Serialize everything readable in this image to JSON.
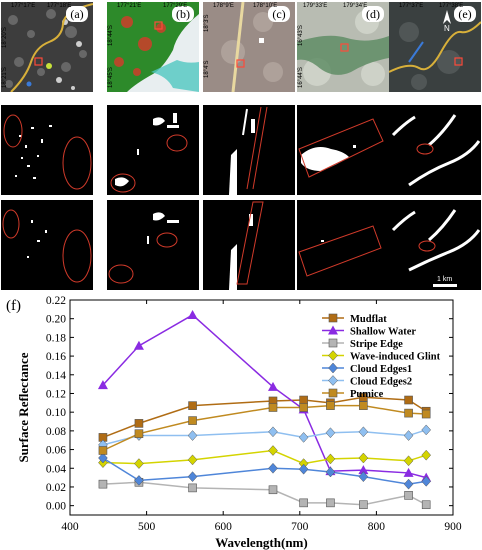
{
  "panels": [
    {
      "label": "(a)",
      "top_coords": [
        "177°17'E",
        "177°18'E"
      ],
      "left_coords": [
        "18°20'S",
        "18°21'S"
      ]
    },
    {
      "label": "(b)",
      "top_coords": [
        "177°21'E"
      ],
      "right_coords": [
        "177°29'E"
      ],
      "left_coords": [
        "18°44'S",
        "18°45'S"
      ]
    },
    {
      "label": "(c)",
      "top_coords": [
        "178°9'E",
        "178°10'E"
      ],
      "left_coords": [
        "18°3'S",
        "18°4'S"
      ]
    },
    {
      "label": "(d)",
      "top_coords": [
        "179°33'E",
        "179°34'E"
      ],
      "left_coords": [
        "16°43'S",
        "16°44'S"
      ]
    },
    {
      "label": "(e)",
      "top_coords": [
        "177°37'E",
        "177°38'E"
      ],
      "left_coords": [],
      "north": "N",
      "scale": "1 km"
    }
  ],
  "colors": {
    "mudflat": "#b06c14",
    "shallow_water": "#8a2be2",
    "stripe_edge": "#b4b4b4",
    "wave_glint": "#d4d400",
    "cloud_edges1": "#4f86d9",
    "cloud_edges2": "#8fbff0",
    "pumice": "#c08a20"
  },
  "chart_data": {
    "label": "(f)",
    "type": "line",
    "xlabel": "Wavelength(nm)",
    "ylabel": "Surface Reflectance",
    "xlim": [
      400,
      900
    ],
    "ylim": [
      -0.01,
      0.22
    ],
    "xticks": [
      400,
      500,
      600,
      700,
      800,
      900
    ],
    "yticks": [
      0.0,
      0.02,
      0.04,
      0.06,
      0.08,
      0.1,
      0.12,
      0.14,
      0.16,
      0.18,
      0.2,
      0.22
    ],
    "x": [
      443,
      490,
      560,
      665,
      705,
      740,
      783,
      842,
      865
    ],
    "series": [
      {
        "name": "Mudflat",
        "color": "#b06c14",
        "marker": "square",
        "values": [
          0.073,
          0.088,
          0.107,
          0.112,
          0.113,
          0.11,
          0.116,
          0.113,
          0.101
        ]
      },
      {
        "name": "Shallow Water",
        "color": "#8a2be2",
        "marker": "triangle",
        "values": [
          0.129,
          0.171,
          0.204,
          0.127,
          0.103,
          0.037,
          0.038,
          0.035,
          0.03
        ]
      },
      {
        "name": "Stripe Edge",
        "color": "#b4b4b4",
        "marker": "square",
        "values": [
          0.023,
          0.025,
          0.019,
          0.017,
          0.003,
          0.003,
          0.001,
          0.011,
          0.001
        ]
      },
      {
        "name": "Wave-induced Glint",
        "color": "#d4d400",
        "marker": "diamond",
        "values": [
          0.046,
          0.045,
          0.049,
          0.059,
          0.045,
          0.05,
          0.051,
          0.048,
          0.054
        ]
      },
      {
        "name": "Cloud Edges1",
        "color": "#4f86d9",
        "marker": "diamond",
        "values": [
          0.051,
          0.027,
          0.031,
          0.04,
          0.039,
          0.036,
          0.031,
          0.023,
          0.026
        ]
      },
      {
        "name": "Cloud Edges2",
        "color": "#8fbff0",
        "marker": "diamond",
        "values": [
          0.065,
          0.075,
          0.075,
          0.079,
          0.073,
          0.078,
          0.079,
          0.075,
          0.081
        ]
      },
      {
        "name": "Pumice",
        "color": "#c08a20",
        "marker": "square",
        "values": [
          0.059,
          0.077,
          0.091,
          0.105,
          0.105,
          0.107,
          0.107,
          0.099,
          0.098
        ]
      }
    ],
    "legend_position": "top-right"
  }
}
